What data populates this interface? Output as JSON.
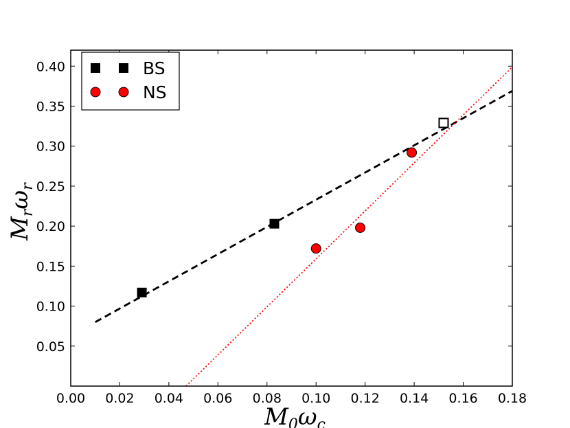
{
  "chart_data": {
    "type": "scatter",
    "xlabel": {
      "main": "M",
      "sub": "0",
      "main2": "ω",
      "sub2": "c"
    },
    "ylabel": {
      "main": "M",
      "sub": "r",
      "main2": "ω",
      "sub2": "r"
    },
    "xlim": [
      0.0,
      0.18
    ],
    "ylim": [
      0.0,
      0.42
    ],
    "xticks": [
      "0.00",
      "0.02",
      "0.04",
      "0.06",
      "0.08",
      "0.10",
      "0.12",
      "0.14",
      "0.16",
      "0.18"
    ],
    "yticks": [
      "0.05",
      "0.10",
      "0.15",
      "0.20",
      "0.25",
      "0.30",
      "0.35",
      "0.40"
    ],
    "grid": false,
    "legend_position": "top-left",
    "series": [
      {
        "name": "BS",
        "marker": "square",
        "color": "#000000",
        "points": [
          {
            "x": 0.029,
            "y": 0.117
          },
          {
            "x": 0.083,
            "y": 0.203
          }
        ],
        "fit": {
          "style": "dashed",
          "color": "#000000",
          "x_range": [
            0.01,
            0.18
          ],
          "slope": 1.7,
          "intercept": 0.063
        }
      },
      {
        "name": "NS",
        "marker": "circle",
        "color": "#ff0000",
        "points": [
          {
            "x": 0.1,
            "y": 0.172
          },
          {
            "x": 0.118,
            "y": 0.198
          },
          {
            "x": 0.139,
            "y": 0.292
          }
        ],
        "fit": {
          "style": "dotted",
          "color": "#ff0000",
          "x_range": [
            0.047,
            0.18
          ],
          "slope": 3.0,
          "intercept": -0.141
        }
      }
    ],
    "extra_markers": [
      {
        "x": 0.152,
        "y": 0.329,
        "marker": "square-open",
        "color": "#000000"
      }
    ]
  }
}
